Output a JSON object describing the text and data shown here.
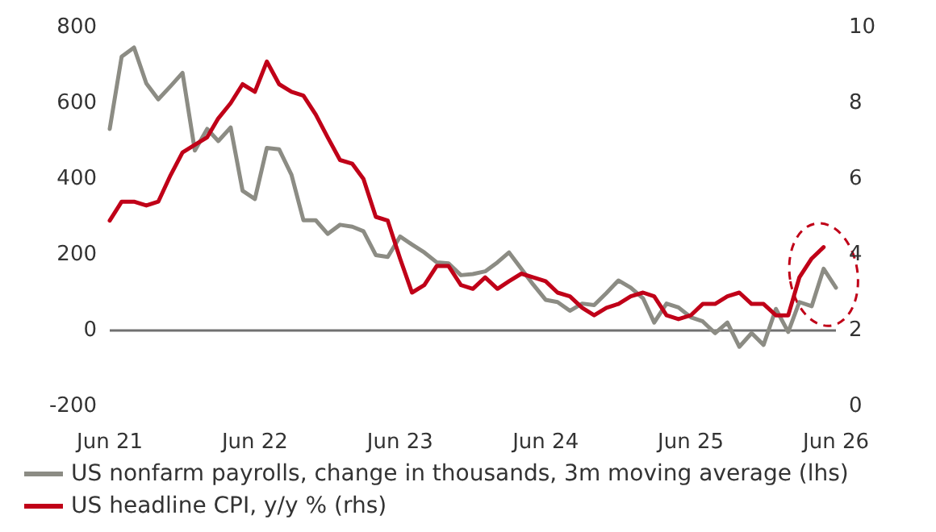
{
  "chart_data": {
    "type": "line",
    "x": [
      "2021-06",
      "2021-07",
      "2021-08",
      "2021-09",
      "2021-10",
      "2021-11",
      "2021-12",
      "2022-01",
      "2022-02",
      "2022-03",
      "2022-04",
      "2022-05",
      "2022-06",
      "2022-07",
      "2022-08",
      "2022-09",
      "2022-10",
      "2022-11",
      "2022-12",
      "2023-01",
      "2023-02",
      "2023-03",
      "2023-04",
      "2023-05",
      "2023-06",
      "2023-07",
      "2023-08",
      "2023-09",
      "2023-10",
      "2023-11",
      "2023-12",
      "2024-01",
      "2024-02",
      "2024-03",
      "2024-04",
      "2024-05",
      "2024-06",
      "2024-07",
      "2024-08",
      "2024-09",
      "2024-10",
      "2024-11",
      "2024-12",
      "2025-01",
      "2025-02",
      "2025-03",
      "2025-04",
      "2025-05",
      "2025-06",
      "2025-07",
      "2025-08",
      "2025-09",
      "2025-10",
      "2025-11",
      "2025-12",
      "2026-01",
      "2026-02",
      "2026-03",
      "2026-04",
      "2026-05",
      "2026-06"
    ],
    "series": [
      {
        "name": "US nonfarm payrolls, change in thousands, 3m moving average (lhs)",
        "color": "#8c8c84",
        "axis": "y",
        "values": [
          532,
          723,
          747,
          652,
          610,
          645,
          680,
          475,
          532,
          500,
          536,
          369,
          347,
          482,
          478,
          411,
          291,
          291,
          255,
          279,
          274,
          262,
          199,
          194,
          248,
          227,
          206,
          180,
          177,
          146,
          149,
          156,
          180,
          206,
          163,
          121,
          81,
          75,
          52,
          71,
          67,
          99,
          132,
          113,
          85,
          21,
          71,
          61,
          35,
          24,
          -7,
          21,
          -43,
          -7,
          -38,
          57,
          -4,
          75,
          64,
          163,
          113
        ]
      },
      {
        "name": "US headline CPI, y/y % (rhs)",
        "color": "#c00018",
        "axis": "y2",
        "values": [
          4.9,
          5.4,
          5.4,
          5.3,
          5.4,
          6.1,
          6.7,
          6.9,
          7.1,
          7.6,
          8.0,
          8.5,
          8.3,
          9.1,
          8.5,
          8.3,
          8.2,
          7.7,
          7.1,
          6.5,
          6.4,
          6.0,
          5.0,
          4.9,
          3.9,
          3.0,
          3.2,
          3.7,
          3.7,
          3.2,
          3.1,
          3.4,
          3.1,
          3.3,
          3.5,
          3.4,
          3.3,
          3.0,
          2.9,
          2.6,
          2.4,
          2.6,
          2.7,
          2.9,
          3.0,
          2.9,
          2.4,
          2.3,
          2.4,
          2.7,
          2.7,
          2.9,
          3.0,
          2.7,
          2.7,
          2.4,
          2.4,
          3.4,
          3.9,
          4.2,
          null
        ]
      }
    ],
    "xlim": [
      "2021-06",
      "2026-06"
    ],
    "xticks": [
      {
        "value": "2021-06",
        "label": "Jun 21"
      },
      {
        "value": "2022-06",
        "label": "Jun 22"
      },
      {
        "value": "2023-06",
        "label": "Jun 23"
      },
      {
        "value": "2024-06",
        "label": "Jun 24"
      },
      {
        "value": "2025-06",
        "label": "Jun 25"
      },
      {
        "value": "2026-06",
        "label": "Jun 26"
      }
    ],
    "ylim": [
      -200,
      800
    ],
    "yticks": [
      -200,
      0,
      200,
      400,
      600,
      800
    ],
    "y2lim": [
      0,
      10
    ],
    "y2ticks": [
      0,
      2,
      4,
      6,
      8,
      10
    ],
    "ref_lines": [
      {
        "axis": "y",
        "value": 0,
        "color": "#707070"
      }
    ],
    "grid": false,
    "legend": "bottom",
    "marker": "none",
    "line_style": "solid"
  }
}
